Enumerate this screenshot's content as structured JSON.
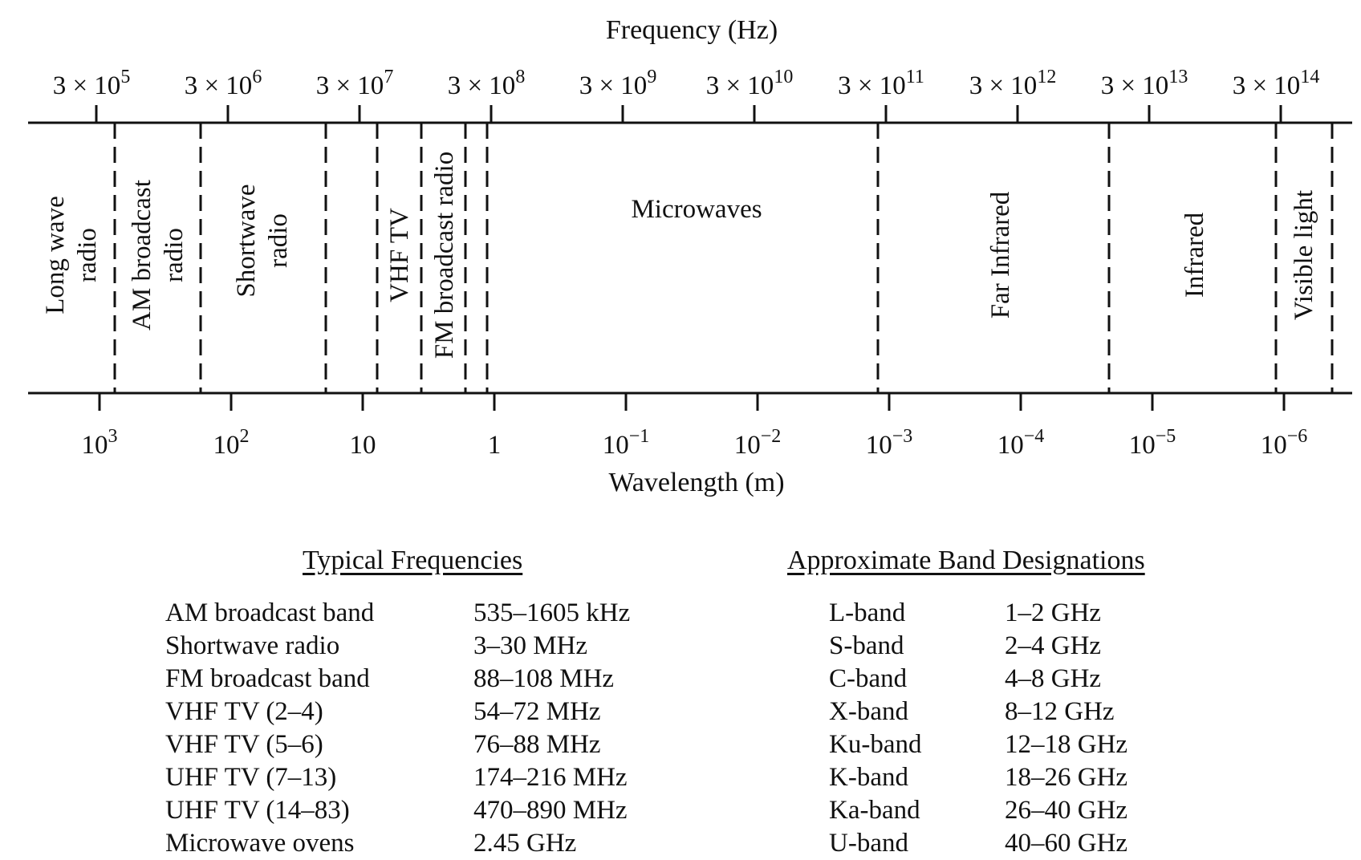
{
  "spectrum": {
    "frequency_axis_label": "Frequency (Hz)",
    "wavelength_axis_label": "Wavelength (m)",
    "frequency_ticks": [
      {
        "mant": "3 × 10",
        "exp": "5"
      },
      {
        "mant": "3 × 10",
        "exp": "6"
      },
      {
        "mant": "3 × 10",
        "exp": "7"
      },
      {
        "mant": "3 × 10",
        "exp": "8"
      },
      {
        "mant": "3 × 10",
        "exp": "9"
      },
      {
        "mant": "3 × 10",
        "exp": "10"
      },
      {
        "mant": "3 × 10",
        "exp": "11"
      },
      {
        "mant": "3 × 10",
        "exp": "12"
      },
      {
        "mant": "3 × 10",
        "exp": "13"
      },
      {
        "mant": "3 × 10",
        "exp": "14"
      }
    ],
    "wavelength_ticks": [
      {
        "base": "10",
        "exp": "3"
      },
      {
        "base": "10",
        "exp": "2"
      },
      {
        "base": "10",
        "exp": ""
      },
      {
        "base": "1",
        "exp": ""
      },
      {
        "base": "10",
        "exp": "−1"
      },
      {
        "base": "10",
        "exp": "−2"
      },
      {
        "base": "10",
        "exp": "−3"
      },
      {
        "base": "10",
        "exp": "−4"
      },
      {
        "base": "10",
        "exp": "−5"
      },
      {
        "base": "10",
        "exp": "−6"
      }
    ],
    "bands": [
      {
        "name": "long-wave-radio",
        "lines": [
          "Long wave",
          "radio"
        ]
      },
      {
        "name": "am-broadcast-radio",
        "lines": [
          "AM broadcast",
          "radio"
        ]
      },
      {
        "name": "shortwave-radio",
        "lines": [
          "Shortwave",
          "radio"
        ]
      },
      {
        "name": "vhf-tv",
        "lines": [
          "VHF TV"
        ]
      },
      {
        "name": "fm-broadcast-radio",
        "lines": [
          "FM broadcast radio"
        ]
      },
      {
        "name": "microwaves",
        "lines": [
          "Microwaves"
        ]
      },
      {
        "name": "far-infrared",
        "lines": [
          "Far Infrared"
        ]
      },
      {
        "name": "infrared",
        "lines": [
          "Infrared"
        ]
      },
      {
        "name": "visible-light",
        "lines": [
          "Visible light"
        ]
      }
    ]
  },
  "typical_frequencies": {
    "title": "Typical Frequencies",
    "rows": [
      {
        "name": "AM broadcast band",
        "value": "535–1605 kHz"
      },
      {
        "name": "Shortwave radio",
        "value": "3–30 MHz"
      },
      {
        "name": "FM broadcast band",
        "value": "88–108 MHz"
      },
      {
        "name": "VHF TV (2–4)",
        "value": "54–72 MHz"
      },
      {
        "name": "VHF TV (5–6)",
        "value": "76–88 MHz"
      },
      {
        "name": "UHF TV (7–13)",
        "value": "174–216 MHz"
      },
      {
        "name": "UHF TV (14–83)",
        "value": "470–890 MHz"
      },
      {
        "name": "Microwave ovens",
        "value": "2.45 GHz"
      }
    ]
  },
  "band_designations": {
    "title": "Approximate Band Designations",
    "rows": [
      {
        "name": "L-band",
        "value": "1–2 GHz"
      },
      {
        "name": "S-band",
        "value": "2–4 GHz"
      },
      {
        "name": "C-band",
        "value": "4–8 GHz"
      },
      {
        "name": "X-band",
        "value": "8–12 GHz"
      },
      {
        "name": "Ku-band",
        "value": "12–18 GHz"
      },
      {
        "name": "K-band",
        "value": "18–26 GHz"
      },
      {
        "name": "Ka-band",
        "value": "26–40 GHz"
      },
      {
        "name": "U-band",
        "value": "40–60 GHz"
      }
    ]
  }
}
